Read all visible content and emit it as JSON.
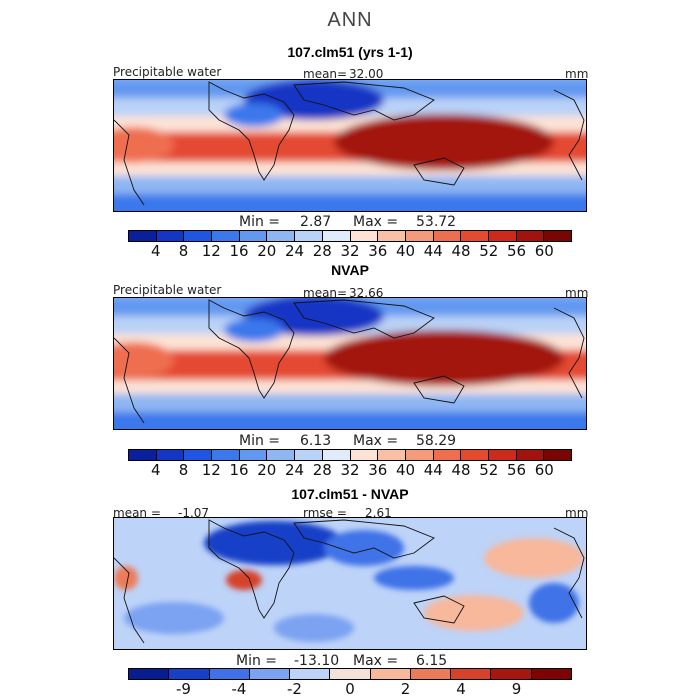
{
  "suptitle": "ANN",
  "colors": {
    "seq": [
      "#0a1f9b",
      "#1436c4",
      "#1f55e0",
      "#3a78ec",
      "#6298f0",
      "#8eb6f3",
      "#b9d2f7",
      "#e0ecfb",
      "#fde3d6",
      "#f9c0a6",
      "#f59a7a",
      "#ee6e50",
      "#e44a30",
      "#cc2a1a",
      "#a3130e",
      "#7a0604"
    ],
    "div": [
      "#081d8f",
      "#1740c8",
      "#3f72e8",
      "#7ba3f2",
      "#bdd3f8",
      "#f4e1d8",
      "#f7b89c",
      "#ec7b59",
      "#d6432a",
      "#a8170f",
      "#7d0402"
    ]
  },
  "panels": [
    {
      "title": "107.clm51 (yrs 1-1)",
      "left_label": "Precipitable water",
      "mean_label": "mean=",
      "mean_value": "32.00",
      "units": "mm",
      "min_label": "Min =",
      "min_value": "2.87",
      "max_label": "Max =",
      "max_value": "53.72",
      "ticks": [
        "4",
        "8",
        "12",
        "16",
        "20",
        "24",
        "28",
        "32",
        "36",
        "40",
        "44",
        "48",
        "52",
        "56",
        "60"
      ]
    },
    {
      "title": "NVAP",
      "left_label": "Precipitable water",
      "mean_label": "mean=",
      "mean_value": "32.66",
      "units": "mm",
      "min_label": "Min =",
      "min_value": "6.13",
      "max_label": "Max =",
      "max_value": "58.29",
      "ticks": [
        "4",
        "8",
        "12",
        "16",
        "20",
        "24",
        "28",
        "32",
        "36",
        "40",
        "44",
        "48",
        "52",
        "56",
        "60"
      ]
    },
    {
      "title": "107.clm51 - NVAP",
      "mean_label": "mean =",
      "mean_value": "-1.07",
      "rmse_label": "rmse =",
      "rmse_value": "2.61",
      "units": "mm",
      "min_label": "Min =",
      "min_value": "-13.10",
      "max_label": "Max =",
      "max_value": "6.15",
      "ticks": [
        "-9",
        "-4",
        "-2",
        "0",
        "2",
        "4",
        "9"
      ]
    }
  ],
  "chart_data": [
    {
      "type": "heatmap",
      "title": "107.clm51 (yrs 1-1)",
      "field": "Precipitable water",
      "units": "mm",
      "mean": 32.0,
      "min": 2.87,
      "max": 53.72,
      "contour_levels": [
        4,
        8,
        12,
        16,
        20,
        24,
        28,
        32,
        36,
        40,
        44,
        48,
        52,
        56,
        60
      ]
    },
    {
      "type": "heatmap",
      "title": "NVAP",
      "field": "Precipitable water",
      "units": "mm",
      "mean": 32.66,
      "min": 6.13,
      "max": 58.29,
      "contour_levels": [
        4,
        8,
        12,
        16,
        20,
        24,
        28,
        32,
        36,
        40,
        44,
        48,
        52,
        56,
        60
      ]
    },
    {
      "type": "heatmap",
      "title": "107.clm51 - NVAP",
      "units": "mm",
      "mean": -1.07,
      "rmse": 2.61,
      "min": -13.1,
      "max": 6.15,
      "contour_levels": [
        -9,
        -4,
        -2,
        0,
        2,
        4,
        9
      ]
    }
  ]
}
